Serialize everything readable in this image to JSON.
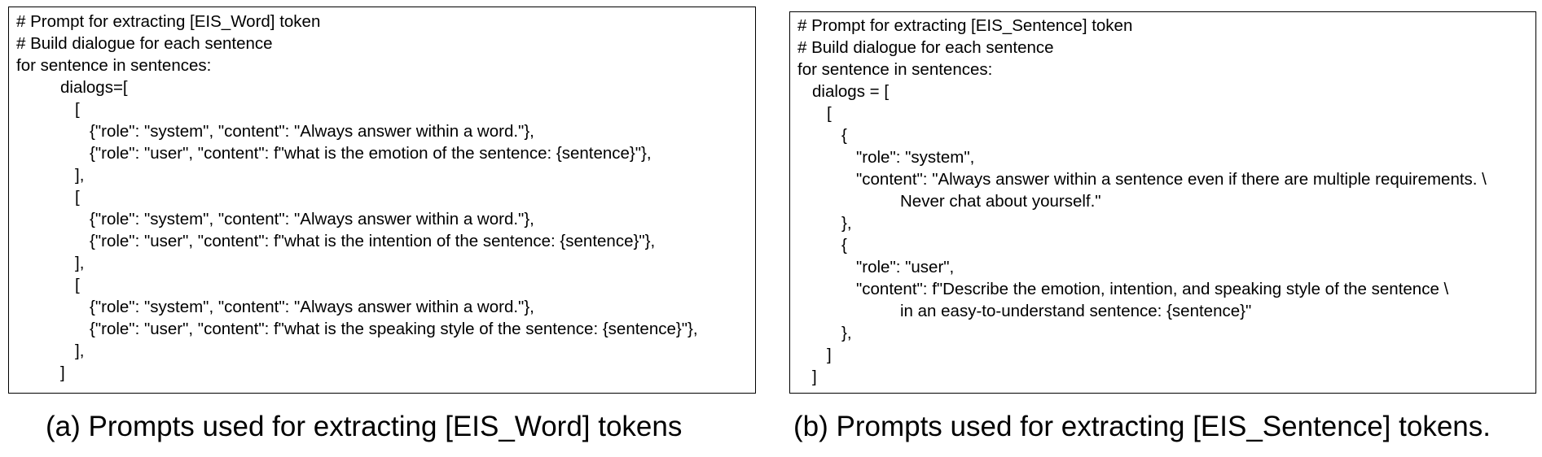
{
  "panel_a": {
    "lines": [
      "# Prompt for extracting [EIS_Word] token",
      "# Build dialogue for each sentence",
      "for sentence in sentences:",
      "dialogs=[",
      "[",
      "{\"role\": \"system\", \"content\": \"Always answer within a word.\"},",
      "{\"role\": \"user\", \"content\": f\"what is the emotion of the sentence: {sentence}\"},",
      "],",
      "[",
      "{\"role\": \"system\", \"content\": \"Always answer within a word.\"},",
      "{\"role\": \"user\", \"content\": f\"what is the intention of the sentence: {sentence}\"},",
      "],",
      "[",
      "{\"role\": \"system\", \"content\": \"Always answer within a word.\"},",
      "{\"role\": \"user\", \"content\": f\"what is the speaking style of the sentence: {sentence}\"},",
      "],",
      "]"
    ],
    "caption": "(a) Prompts used for extracting [EIS_Word] tokens"
  },
  "panel_b": {
    "lines": [
      "# Prompt for extracting [EIS_Sentence] token",
      "# Build dialogue for each sentence",
      "for sentence in sentences:",
      "dialogs = [",
      "[",
      "{",
      "\"role\": \"system\",",
      "\"content\": \"Always answer within a sentence even if there are multiple requirements. \\",
      "Never chat about yourself.\"",
      "},",
      "{",
      "\"role\": \"user\",",
      "\"content\": f\"Describe the emotion, intention, and speaking style of the sentence \\",
      "in an easy-to-understand sentence: {sentence}\"",
      "},",
      "]",
      "]"
    ],
    "caption": "(b) Prompts used for extracting [EIS_Sentence] tokens."
  }
}
